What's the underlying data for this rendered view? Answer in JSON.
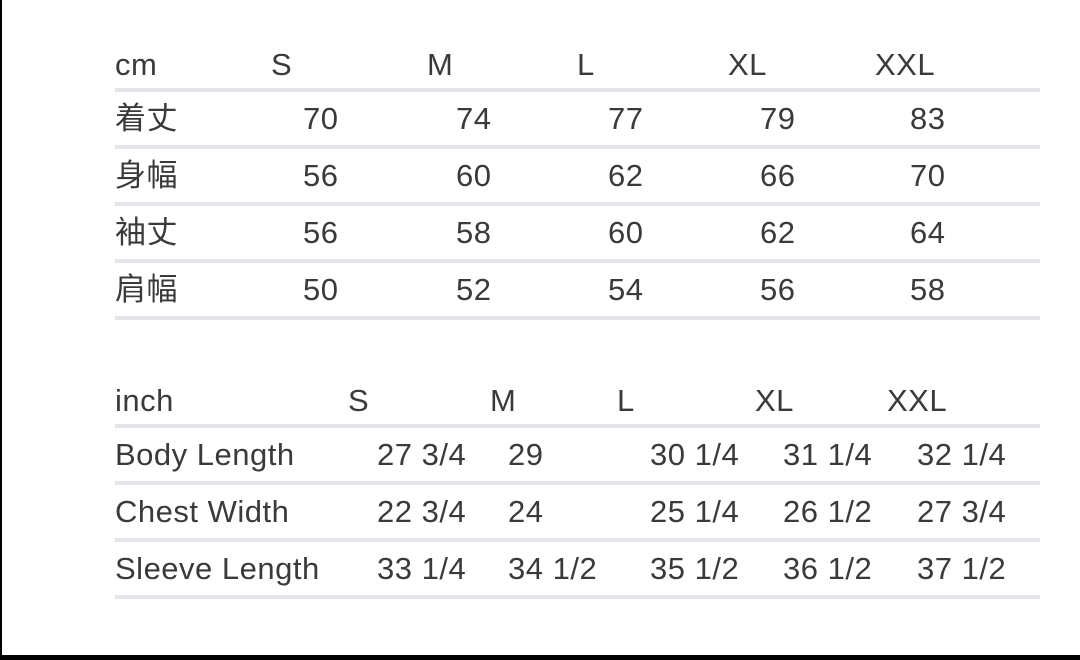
{
  "colors": {
    "text": "#3a3a3a",
    "divider": "#e5e5e9",
    "frame": "#000000",
    "background": "#ffffff"
  },
  "chart_data": [
    {
      "type": "table",
      "unit_label": "cm",
      "size_headers": [
        "S",
        "M",
        "L",
        "XL",
        "XXL"
      ],
      "rows": [
        {
          "label": "着丈",
          "values": [
            "70",
            "74",
            "77",
            "79",
            "83"
          ]
        },
        {
          "label": "身幅",
          "values": [
            "56",
            "60",
            "62",
            "66",
            "70"
          ]
        },
        {
          "label": "袖丈",
          "values": [
            "56",
            "58",
            "60",
            "62",
            "64"
          ]
        },
        {
          "label": "肩幅",
          "values": [
            "50",
            "52",
            "54",
            "56",
            "58"
          ]
        }
      ]
    },
    {
      "type": "table",
      "unit_label": "inch",
      "size_headers": [
        "S",
        "M",
        "L",
        "XL",
        "XXL"
      ],
      "rows": [
        {
          "label": "Body Length",
          "values": [
            "27 3/4",
            "29",
            "30 1/4",
            "31 1/4",
            "32 1/4"
          ]
        },
        {
          "label": "Chest Width",
          "values": [
            "22 3/4",
            "24",
            "25 1/4",
            "26 1/2",
            "27 3/4"
          ]
        },
        {
          "label": "Sleeve Length",
          "values": [
            "33 1/4",
            "34 1/2",
            "35 1/2",
            "36 1/2",
            "37 1/2"
          ]
        }
      ]
    }
  ]
}
